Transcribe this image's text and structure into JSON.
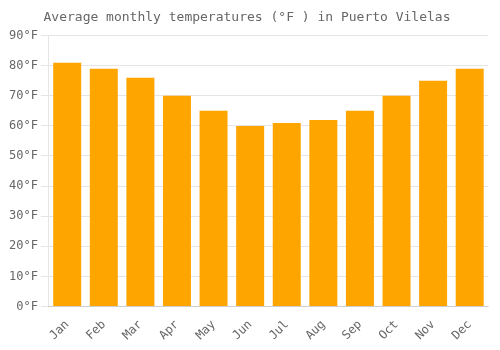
{
  "chart_data": {
    "type": "bar",
    "title": "Average monthly temperatures (°F ) in Puerto Vilelas",
    "categories": [
      "Jan",
      "Feb",
      "Mar",
      "Apr",
      "May",
      "Jun",
      "Jul",
      "Aug",
      "Sep",
      "Oct",
      "Nov",
      "Dec"
    ],
    "values": [
      81,
      79,
      76,
      70,
      65,
      60,
      61,
      62,
      65,
      70,
      75,
      79
    ],
    "color": "#FFA500",
    "ylim": [
      0,
      90
    ],
    "yticks": [
      {
        "value": 0,
        "label": "0°F"
      },
      {
        "value": 10,
        "label": "10°F"
      },
      {
        "value": 20,
        "label": "20°F"
      },
      {
        "value": 30,
        "label": "30°F"
      },
      {
        "value": 40,
        "label": "40°F"
      },
      {
        "value": 50,
        "label": "50°F"
      },
      {
        "value": 60,
        "label": "60°F"
      },
      {
        "value": 70,
        "label": "70°F"
      },
      {
        "value": 80,
        "label": "80°F"
      },
      {
        "value": 90,
        "label": "90°F"
      }
    ],
    "grid": true
  }
}
